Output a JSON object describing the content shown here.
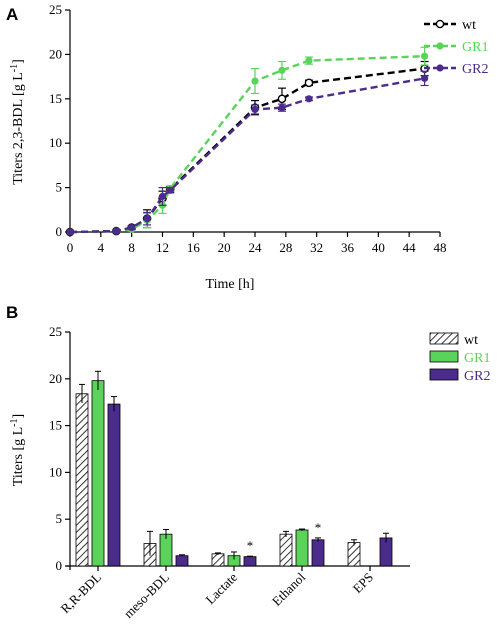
{
  "colors": {
    "wt": "#000000",
    "GR1": "#5bd35b",
    "GR2": "#4b2c8c"
  },
  "chart_data": [
    {
      "panel": "A",
      "type": "line",
      "xlabel": "Time [h]",
      "ylabel": "Titers 2,3-BDL [g L",
      "ylabel_sup": "-1",
      "ylabel_end": "]",
      "xlim": [
        0,
        48
      ],
      "ylim": [
        0,
        25
      ],
      "xticks": [
        "0",
        "4",
        "8",
        "12",
        "16",
        "20",
        "24",
        "28",
        "32",
        "36",
        "40",
        "44",
        "48"
      ],
      "yticks": [
        "0",
        "5",
        "10",
        "15",
        "20",
        "25"
      ],
      "legend_position": "top-right",
      "series": [
        {
          "name": "wt",
          "marker": "open",
          "x": [
            0,
            6,
            8,
            10,
            12,
            13,
            24,
            27.5,
            31,
            46
          ],
          "y": [
            0,
            0.1,
            0.5,
            1.5,
            3.8,
            4.8,
            14.0,
            15.0,
            16.8,
            18.4
          ],
          "err": [
            0,
            0.1,
            0.2,
            1.0,
            0.8,
            0.3,
            0.8,
            1.2,
            0.3,
            0.8
          ]
        },
        {
          "name": "GR1",
          "marker": "filled",
          "x": [
            0,
            6,
            8,
            10,
            12,
            13,
            24,
            27.5,
            31,
            46
          ],
          "y": [
            0,
            0.1,
            0.3,
            1.3,
            3.0,
            4.9,
            17.0,
            18.2,
            19.3,
            19.8
          ],
          "err": [
            0,
            0.1,
            0.2,
            0.8,
            0.9,
            0.3,
            1.4,
            1.0,
            0.4,
            1.0
          ]
        },
        {
          "name": "GR2",
          "marker": "filled",
          "x": [
            0,
            6,
            8,
            10,
            12,
            13,
            24,
            27.5,
            31,
            46
          ],
          "y": [
            0,
            0.1,
            0.5,
            1.5,
            4.0,
            4.7,
            13.8,
            14.0,
            15.0,
            17.3
          ],
          "err": [
            0,
            0.1,
            0.2,
            0.7,
            1.0,
            0.3,
            0.5,
            0.4,
            0.2,
            0.8
          ]
        }
      ]
    },
    {
      "panel": "B",
      "type": "bar",
      "ylabel": "Titers [g L",
      "ylabel_sup": "-1",
      "ylabel_end": "]",
      "ylim": [
        0,
        25
      ],
      "yticks": [
        "0",
        "5",
        "10",
        "15",
        "20",
        "25"
      ],
      "categories": [
        "R,R-BDL",
        "meso-BDL",
        "Lactate",
        "Ethanol",
        "EPS"
      ],
      "legend_position": "top-right",
      "series": [
        {
          "name": "wt",
          "pattern": "hatch",
          "values": [
            18.4,
            2.4,
            1.3,
            3.4,
            2.5
          ],
          "err": [
            1.0,
            1.3,
            0.1,
            0.3,
            0.3
          ]
        },
        {
          "name": "GR1",
          "values": [
            19.8,
            3.4,
            1.1,
            3.85,
            0
          ],
          "err": [
            1.0,
            0.5,
            0.4,
            0.1,
            0
          ]
        },
        {
          "name": "GR2",
          "values": [
            17.3,
            1.1,
            1.0,
            2.8,
            3.0
          ],
          "err": [
            0.8,
            0.1,
            0.05,
            0.2,
            0.5
          ]
        }
      ],
      "annotations": [
        {
          "category": "Lactate",
          "series": "GR2",
          "text": "*"
        },
        {
          "category": "Ethanol",
          "series": "GR2",
          "text": "*"
        }
      ]
    }
  ]
}
